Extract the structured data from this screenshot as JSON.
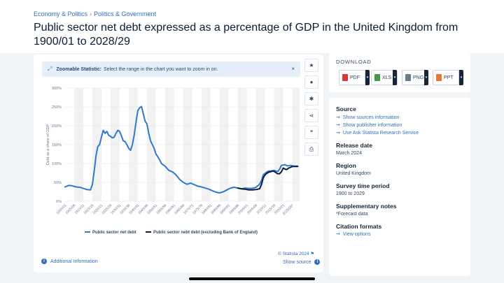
{
  "breadcrumb": {
    "item1": "Economy & Politics",
    "sep": "›",
    "item2": "Politics & Government"
  },
  "title": "Public sector net debt expressed as a percentage of GDP in the United Kingdom from 1900/01 to 2028/29",
  "zoom_banner": {
    "bold": "Zoomable Statistic:",
    "text": "Select the range in the chart you want to zoom in on.",
    "close": "×"
  },
  "tools": [
    "star-icon",
    "bell-icon",
    "gear-icon",
    "share-icon",
    "quote-icon",
    "print-icon"
  ],
  "tool_glyphs": {
    "star": "★",
    "bell": "●",
    "gear": "✱",
    "share": "⋖",
    "quote": "❝",
    "print": "⎙"
  },
  "footer": {
    "additional": "Additional Information",
    "copyright": "© Statista 2024",
    "show_source": "Show source",
    "info": "i"
  },
  "download": {
    "title": "DOWNLOAD",
    "buttons": [
      {
        "label": "PDF",
        "color": "#d9373c"
      },
      {
        "label": "XLS",
        "color": "#3f9b4b"
      },
      {
        "label": "PNG",
        "color": "#6d7c8c"
      },
      {
        "label": "PPT",
        "color": "#e8763a"
      }
    ]
  },
  "meta": {
    "source_h": "Source",
    "source_links": [
      "Show sources information",
      "Show publisher information",
      "Use Ask Statista Research Service"
    ],
    "release_h": "Release date",
    "release": "March 2024",
    "region_h": "Region",
    "region": "United Kingdom",
    "period_h": "Survey time period",
    "period": "1900 to 2029",
    "notes_h": "Supplementary notes",
    "notes": "*Forecast data",
    "citation_h": "Citation formats",
    "citation_link": "View options"
  },
  "chart_data": {
    "type": "line",
    "ylabel": "Debt as a share of GDP",
    "ylim": [
      0,
      300
    ],
    "yticks": [
      "0%",
      "50%",
      "100%",
      "150%",
      "200%",
      "250%",
      "300%"
    ],
    "x_tick_labels": [
      "1900/01",
      "1905/06",
      "1910/11",
      "1915/16",
      "1920/21",
      "1925/26",
      "1930/31",
      "1935/36",
      "1940/41",
      "1945/46",
      "1950/51",
      "1955/56",
      "1960/61",
      "1965/66",
      "1970/71",
      "1975/76",
      "1980/81",
      "1985/86",
      "1990/91",
      "1995/96",
      "2000/01",
      "2005/06",
      "2010/11",
      "2015/16",
      "2020/21",
      "2025/26*"
    ],
    "grid": true,
    "legend_position": "bottom",
    "colors": {
      "series1": "#2f78cf",
      "series2": "#0d1d36",
      "band": "#f2f2f2"
    },
    "series": [
      {
        "name": "Public sector net debt",
        "x": [
          1900,
          1902,
          1904,
          1906,
          1908,
          1910,
          1912,
          1914,
          1915,
          1916,
          1917,
          1918,
          1919,
          1920,
          1921,
          1922,
          1923,
          1924,
          1925,
          1926,
          1927,
          1928,
          1929,
          1930,
          1931,
          1932,
          1933,
          1934,
          1935,
          1936,
          1937,
          1938,
          1939,
          1940,
          1941,
          1942,
          1943,
          1944,
          1945,
          1946,
          1947,
          1948,
          1949,
          1950,
          1951,
          1952,
          1953,
          1955,
          1957,
          1959,
          1961,
          1963,
          1965,
          1967,
          1969,
          1971,
          1973,
          1975,
          1977,
          1979,
          1981,
          1983,
          1985,
          1987,
          1989,
          1991,
          1993,
          1995,
          1997,
          1999,
          2001,
          2003,
          2005,
          2007,
          2008,
          2009,
          2010,
          2011,
          2012,
          2013,
          2014,
          2015,
          2016,
          2017,
          2018,
          2019,
          2020,
          2021,
          2022,
          2023,
          2024,
          2025,
          2026,
          2027,
          2028
        ],
        "y": [
          38,
          42,
          41,
          38,
          37,
          34,
          31,
          30,
          45,
          80,
          120,
          145,
          150,
          170,
          188,
          180,
          185,
          175,
          172,
          168,
          170,
          180,
          188,
          185,
          173,
          160,
          158,
          150,
          140,
          135,
          150,
          175,
          210,
          240,
          248,
          251,
          232,
          212,
          205,
          180,
          160,
          150,
          140,
          125,
          118,
          110,
          100,
          93,
          82,
          78,
          70,
          58,
          50,
          45,
          48,
          44,
          40,
          38,
          35,
          32,
          28,
          24,
          22,
          25,
          30,
          35,
          37,
          35,
          33,
          35,
          34,
          34,
          37,
          45,
          55,
          70,
          74,
          78,
          80,
          80,
          81,
          82,
          80,
          79,
          85,
          95,
          96,
          97,
          94,
          94,
          95,
          94,
          93,
          93,
          93
        ]
      },
      {
        "name": "Public sector nebt debt (excluding Bank of England)",
        "x": [
          1995,
          1997,
          1999,
          2001,
          2003,
          2005,
          2007,
          2008,
          2009,
          2010,
          2011,
          2012,
          2013,
          2014,
          2015,
          2016,
          2017,
          2018,
          2019,
          2020,
          2021,
          2022,
          2023,
          2024,
          2025,
          2026,
          2027,
          2028
        ],
        "y": [
          35,
          33,
          32,
          30,
          30,
          31,
          33,
          44,
          62,
          70,
          74,
          77,
          78,
          80,
          79,
          76,
          73,
          73,
          78,
          88,
          85,
          84,
          88,
          90,
          92,
          92,
          92,
          92
        ]
      }
    ]
  }
}
